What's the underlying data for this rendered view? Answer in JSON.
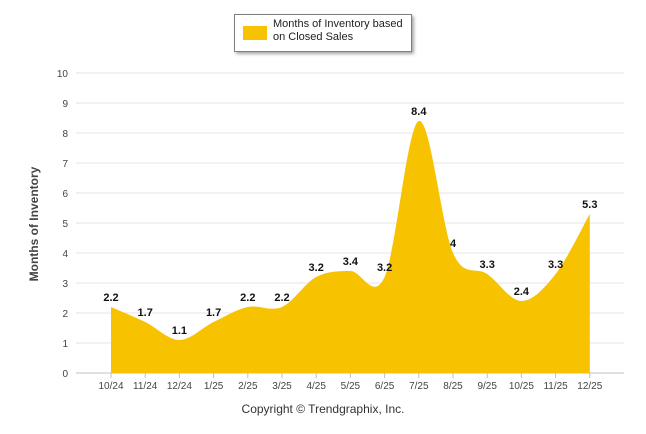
{
  "legend": {
    "label": "Months of Inventory based on Closed Sales"
  },
  "credit": "Copyright © Trendgraphix, Inc.",
  "colors": {
    "series": "#f7c200",
    "grid": "#e6e6e6",
    "axis": "#c0c0c0"
  },
  "chart_data": {
    "type": "area",
    "title": "",
    "xlabel": "",
    "ylabel": "Months of Inventory",
    "ylim": [
      0,
      10
    ],
    "yticks": [
      0,
      1,
      2,
      3,
      4,
      5,
      6,
      7,
      8,
      9,
      10
    ],
    "grid": true,
    "legend_position": "top-center",
    "categories": [
      "10/24",
      "11/24",
      "12/24",
      "1/25",
      "2/25",
      "3/25",
      "4/25",
      "5/25",
      "6/25",
      "7/25",
      "8/25",
      "9/25",
      "10/25",
      "11/25",
      "12/25"
    ],
    "series": [
      {
        "name": "Months of Inventory based on Closed Sales",
        "values": [
          2.2,
          1.7,
          1.1,
          1.7,
          2.2,
          2.2,
          3.2,
          3.4,
          3.2,
          8.4,
          4,
          3.3,
          2.4,
          3.3,
          5.3
        ]
      }
    ]
  }
}
